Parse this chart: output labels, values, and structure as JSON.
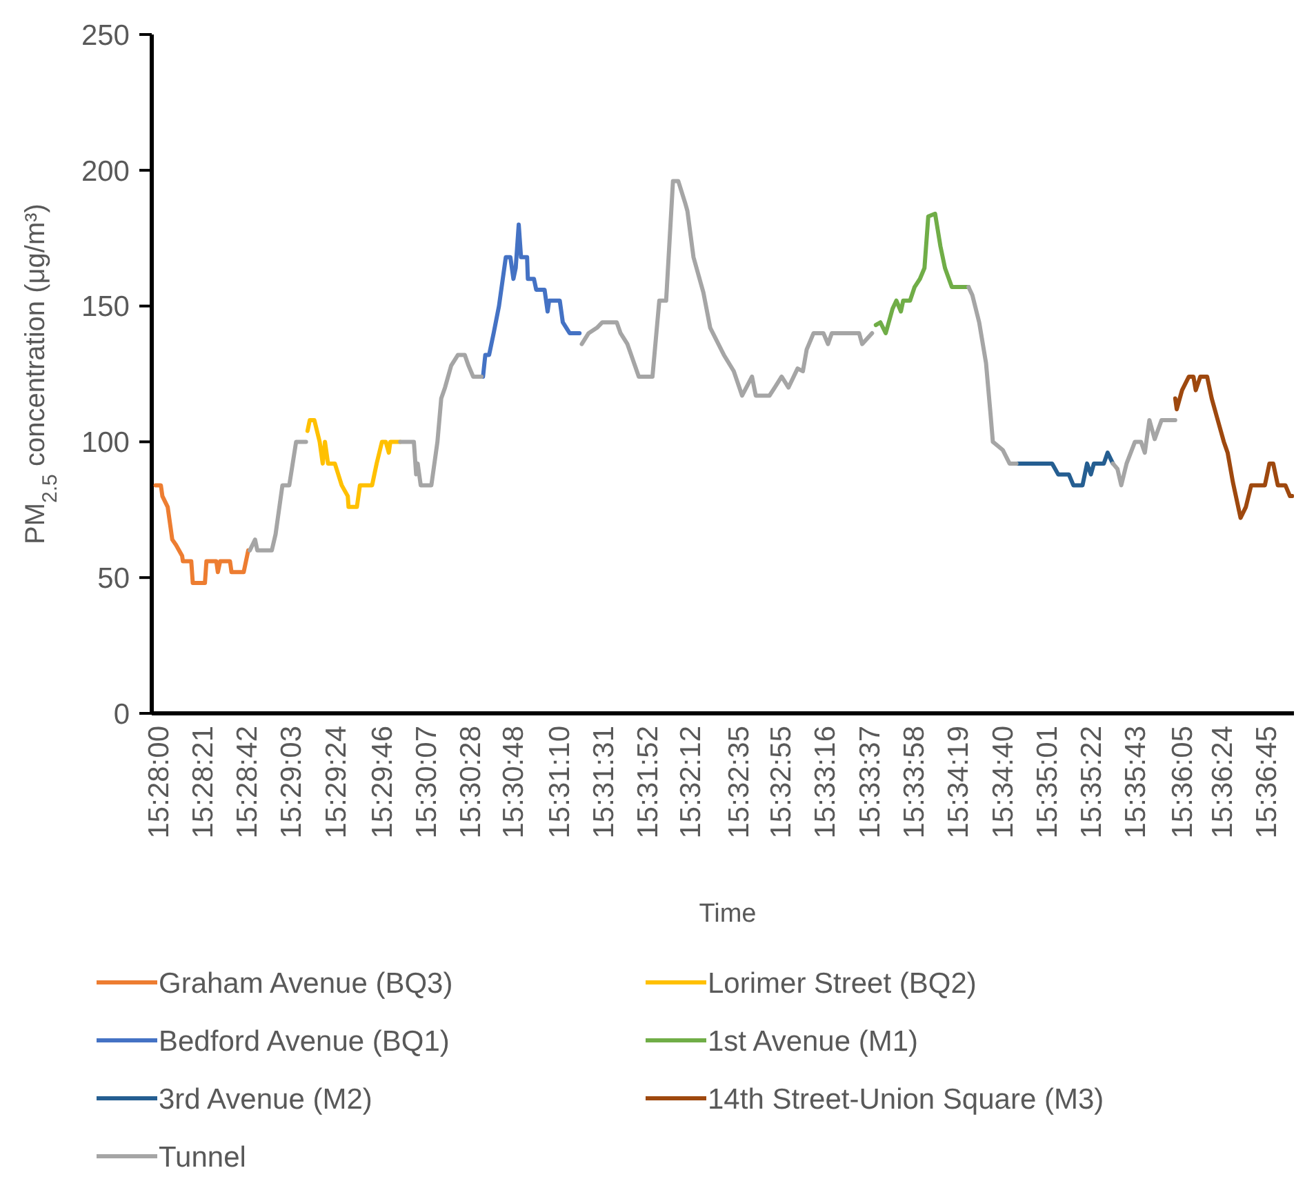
{
  "chart_data": {
    "type": "line",
    "xlabel": "Time",
    "ylabel": "PM$_{2.5}$ concentration (μg/m³)",
    "xlim": [
      15.4658,
      15.6174
    ],
    "ylim": [
      0,
      250
    ],
    "yticks": [
      0,
      50,
      100,
      150,
      200,
      250
    ],
    "xticks": [
      {
        "value": 15.46667,
        "label": "15:28:00"
      },
      {
        "value": 15.4725,
        "label": "15:28:21"
      },
      {
        "value": 15.47833,
        "label": "15:28:42"
      },
      {
        "value": 15.48417,
        "label": "15:29:03"
      },
      {
        "value": 15.49,
        "label": "15:29:24"
      },
      {
        "value": 15.49611,
        "label": "15:29:46"
      },
      {
        "value": 15.50194,
        "label": "15:30:07"
      },
      {
        "value": 15.50778,
        "label": "15:30:28"
      },
      {
        "value": 15.51333,
        "label": "15:30:48"
      },
      {
        "value": 15.51944,
        "label": "15:31:10"
      },
      {
        "value": 15.52528,
        "label": "15:31:31"
      },
      {
        "value": 15.53111,
        "label": "15:31:52"
      },
      {
        "value": 15.53667,
        "label": "15:32:12"
      },
      {
        "value": 15.54306,
        "label": "15:32:35"
      },
      {
        "value": 15.54861,
        "label": "15:32:55"
      },
      {
        "value": 15.55444,
        "label": "15:33:16"
      },
      {
        "value": 15.56028,
        "label": "15:33:37"
      },
      {
        "value": 15.56611,
        "label": "15:33:58"
      },
      {
        "value": 15.57194,
        "label": "15:34:19"
      },
      {
        "value": 15.57778,
        "label": "15:34:40"
      },
      {
        "value": 15.58361,
        "label": "15:35:01"
      },
      {
        "value": 15.58944,
        "label": "15:35:22"
      },
      {
        "value": 15.59528,
        "label": "15:35:43"
      },
      {
        "value": 15.60139,
        "label": "15:36:05"
      },
      {
        "value": 15.60667,
        "label": "15:36:24"
      },
      {
        "value": 15.6125,
        "label": "15:36:45"
      }
    ],
    "grid": false,
    "legend": "bottom",
    "marker": "none",
    "line_style": "solid",
    "series": [
      {
        "name": "Graham Avenue (BQ3)",
        "color": "#ed7d31",
        "x": [
          15.4663,
          15.467,
          15.4672,
          15.4679,
          15.4685,
          15.469,
          15.4698,
          15.4699,
          15.471,
          15.4712,
          15.4728,
          15.473,
          15.4743,
          15.4745,
          15.4748,
          15.4761,
          15.4763,
          15.4779,
          15.4785
        ],
        "values": [
          84,
          84,
          80,
          76,
          64,
          62,
          58,
          56,
          56,
          48,
          48,
          56,
          56,
          52,
          56,
          56,
          52,
          52,
          60
        ]
      },
      {
        "name": "Lorimer Street (BQ2)",
        "color": "#ffc000",
        "x": [
          15.4863,
          15.4866,
          15.4872,
          15.4879,
          15.4883,
          15.4886,
          15.489,
          15.4899,
          15.4908,
          15.4916,
          15.4917,
          15.4928,
          15.4932,
          15.4948,
          15.4954,
          15.4961,
          15.4966,
          15.497,
          15.4972,
          15.4985
        ],
        "values": [
          104,
          108,
          108,
          100,
          92,
          100,
          92,
          92,
          84,
          80,
          76,
          76,
          84,
          84,
          92,
          100,
          100,
          96,
          100,
          100
        ]
      },
      {
        "name": "Bedford Avenue (BQ1)",
        "color": "#4472c4",
        "x": [
          15.5094,
          15.5097,
          15.5102,
          15.5108,
          15.5115,
          15.5124,
          15.513,
          15.5134,
          15.5137,
          15.5141,
          15.5144,
          15.5152,
          15.5153,
          15.5161,
          15.5164,
          15.5175,
          15.5179,
          15.5181,
          15.5195,
          15.5199,
          15.5208,
          15.5221
        ],
        "values": [
          124,
          132,
          132,
          140,
          150,
          168,
          168,
          160,
          164,
          180,
          168,
          168,
          160,
          160,
          156,
          156,
          148,
          152,
          152,
          144,
          140,
          140
        ]
      },
      {
        "name": "1st Avenue (M1)",
        "color": "#70ad47",
        "x": [
          15.5611,
          15.5617,
          15.5624,
          15.5633,
          15.5638,
          15.5644,
          15.5647,
          15.5656,
          15.5662,
          15.5669,
          15.5675,
          15.568,
          15.5689,
          15.5696,
          15.5702,
          15.5711,
          15.5733
        ],
        "values": [
          143,
          144,
          140,
          149,
          152,
          148,
          152,
          152,
          157,
          160,
          164,
          183,
          184,
          172,
          164,
          157,
          157
        ]
      },
      {
        "name": "3rd Avenue (M2)",
        "color": "#255e91",
        "x": [
          15.5796,
          15.5843,
          15.5851,
          15.5865,
          15.5871,
          15.5883,
          15.5889,
          15.5894,
          15.5898,
          15.5911,
          15.5916,
          15.5923
        ],
        "values": [
          92,
          92,
          88,
          88,
          84,
          84,
          92,
          88,
          92,
          92,
          96,
          92
        ]
      },
      {
        "name": "14th Street-Union Square (M3)",
        "color": "#9e480e",
        "x": [
          15.6005,
          15.6007,
          15.6014,
          15.6023,
          15.6029,
          15.6032,
          15.6038,
          15.6047,
          15.6053,
          15.606,
          15.6069,
          15.6074,
          15.6081,
          15.6091,
          15.6098,
          15.6105,
          15.6123,
          15.6129,
          15.6134,
          15.614,
          15.615,
          15.6156,
          15.6159
        ],
        "values": [
          116,
          112,
          119,
          124,
          124,
          119,
          124,
          124,
          116,
          109,
          100,
          96,
          85,
          72,
          76,
          84,
          84,
          92,
          92,
          84,
          84,
          80,
          80
        ]
      },
      {
        "name": "Tunnel",
        "color": "#a5a5a5",
        "x": [
          15.4787,
          15.4794,
          15.4797,
          15.4816,
          15.4821,
          15.483,
          15.4839,
          15.4848,
          15.4861,
          15.4928,
          15.4985,
          15.5003,
          15.5006,
          15.5008,
          15.5012,
          15.5026,
          15.5034,
          15.5039,
          15.5044,
          15.5052,
          15.5061,
          15.507,
          15.5075,
          15.5081,
          15.5092,
          15.5152,
          15.5224,
          15.5233,
          15.5244,
          15.5251,
          15.527,
          15.5275,
          15.5284,
          15.5299,
          15.5317,
          15.5326,
          15.5335,
          15.5344,
          15.5351,
          15.536,
          15.5363,
          15.5371,
          15.5384,
          15.5393,
          15.5411,
          15.5424,
          15.5435,
          15.5448,
          15.5453,
          15.5471,
          15.5478,
          15.5487,
          15.5496,
          15.5508,
          15.5515,
          15.552,
          15.5529,
          15.5542,
          15.5548,
          15.5553,
          15.5589,
          15.5593,
          15.5606,
          15.5689,
          15.5733,
          15.5738,
          15.5747,
          15.5756,
          15.5762,
          15.5765,
          15.5778,
          15.5787,
          15.5796,
          15.5883,
          15.5923,
          15.5929,
          15.5934,
          15.5941,
          15.5952,
          15.596,
          15.5965,
          15.5971,
          15.5978,
          15.5987,
          15.6005
        ],
        "values": [
          60,
          64,
          60,
          60,
          66,
          84,
          84,
          100,
          100,
          null,
          100,
          100,
          88,
          92,
          84,
          84,
          100,
          116,
          120,
          128,
          132,
          132,
          128,
          124,
          124,
          null,
          136,
          140,
          142,
          144,
          144,
          140,
          136,
          124,
          124,
          152,
          152,
          196,
          196,
          188,
          185,
          168,
          155,
          142,
          132,
          126,
          117,
          124,
          117,
          117,
          120,
          124,
          120,
          127,
          126,
          134,
          140,
          140,
          136,
          140,
          140,
          136,
          140,
          null,
          157,
          154,
          144,
          129,
          110,
          100,
          97,
          92,
          92,
          null,
          92,
          90,
          84,
          92,
          100,
          100,
          96,
          108,
          101,
          108,
          108
        ]
      }
    ]
  }
}
